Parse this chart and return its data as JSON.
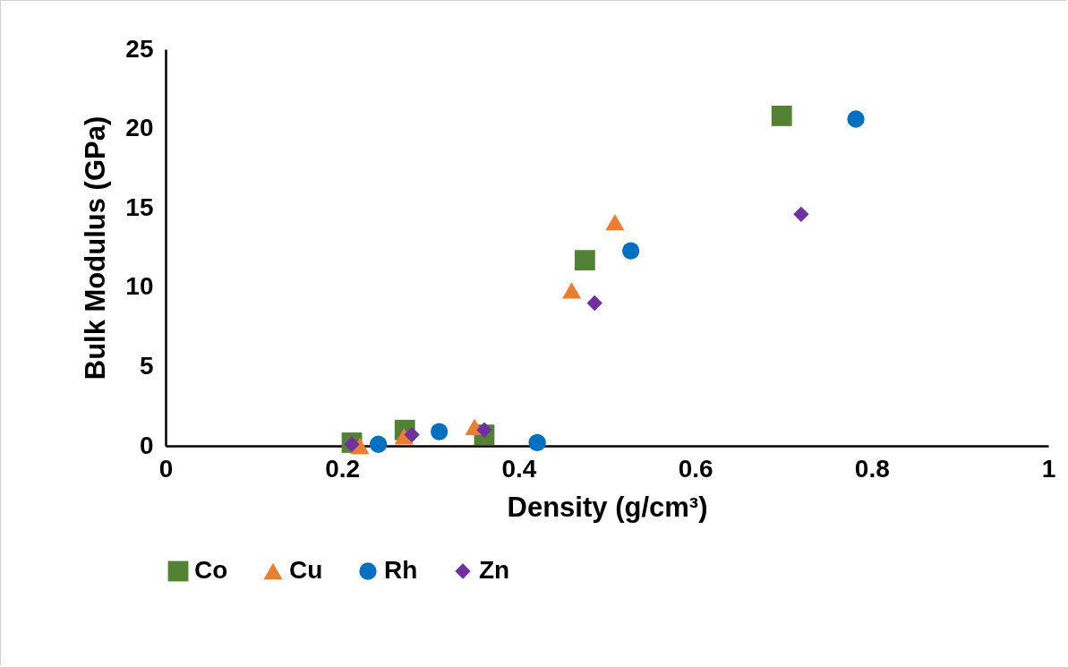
{
  "chart_data": {
    "type": "scatter",
    "xlabel": "Density (g/cm³)",
    "ylabel": "Bulk Modulus (GPa)",
    "xlim": [
      0,
      1
    ],
    "xticks": [
      0,
      0.2,
      0.4,
      0.6,
      0.8,
      1
    ],
    "ylim": [
      0,
      25
    ],
    "yticks": [
      0,
      5,
      10,
      15,
      20,
      25
    ],
    "grid": false,
    "legend": "bottom",
    "series": [
      {
        "name": "Co",
        "color": "#548235",
        "marker": "square",
        "x": [
          0.211,
          0.271,
          0.361,
          0.475,
          0.698
        ],
        "values": [
          0.2,
          1.0,
          0.7,
          11.7,
          20.8
        ]
      },
      {
        "name": "Cu",
        "color": "#ed7d31",
        "marker": "triangle",
        "x": [
          0.22,
          0.27,
          0.35,
          0.46,
          0.509
        ],
        "values": [
          0.0,
          0.6,
          1.2,
          9.8,
          14.1
        ]
      },
      {
        "name": "Rh",
        "color": "#0070c0",
        "marker": "circle",
        "x": [
          0.241,
          0.31,
          0.421,
          0.527,
          0.782
        ],
        "values": [
          0.1,
          0.9,
          0.2,
          12.3,
          20.6
        ]
      },
      {
        "name": "Zn",
        "color": "#7030a0",
        "marker": "diamond",
        "x": [
          0.211,
          0.279,
          0.361,
          0.486,
          0.72
        ],
        "values": [
          0.1,
          0.7,
          1.0,
          9.0,
          14.6
        ]
      }
    ]
  }
}
